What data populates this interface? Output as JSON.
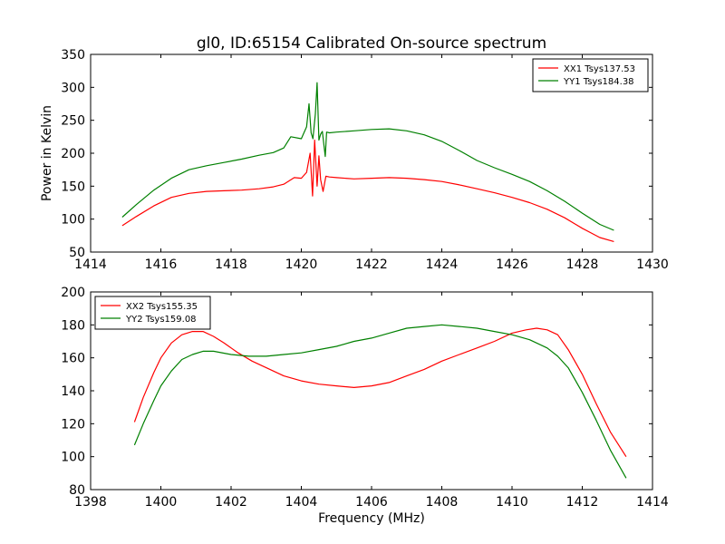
{
  "chart_data": [
    {
      "type": "line",
      "title": "gl0, ID:65154 Calibrated On-source spectrum",
      "xlabel": "",
      "ylabel": "Power in Kelvin",
      "xlim": [
        1414,
        1430
      ],
      "ylim": [
        50,
        350
      ],
      "xticks": [
        "1414",
        "1416",
        "1418",
        "1420",
        "1422",
        "1424",
        "1426",
        "1428",
        "1430"
      ],
      "yticks": [
        "50",
        "100",
        "150",
        "200",
        "250",
        "300",
        "350"
      ],
      "legend_position": "top-right",
      "grid": false,
      "series": [
        {
          "name": "XX1 Tsys137.53",
          "color": "#ff0000",
          "x": [
            1414.9,
            1415.3,
            1415.8,
            1416.3,
            1416.8,
            1417.3,
            1417.8,
            1418.3,
            1418.8,
            1419.2,
            1419.5,
            1419.8,
            1420.0,
            1420.15,
            1420.25,
            1420.32,
            1420.38,
            1420.45,
            1420.5,
            1420.55,
            1420.62,
            1420.7,
            1420.8,
            1421.0,
            1421.5,
            1422.0,
            1422.5,
            1423.0,
            1423.5,
            1424.0,
            1424.5,
            1425.0,
            1425.5,
            1426.0,
            1426.5,
            1427.0,
            1427.5,
            1428.0,
            1428.5,
            1428.9
          ],
          "y": [
            90,
            104,
            120,
            133,
            139,
            142,
            143,
            144,
            146,
            149,
            153,
            163,
            162,
            171,
            200,
            135,
            220,
            150,
            196,
            160,
            142,
            165,
            164,
            163,
            161,
            162,
            163,
            162,
            160,
            157,
            152,
            146,
            140,
            133,
            125,
            115,
            102,
            86,
            72,
            66
          ]
        },
        {
          "name": "YY1 Tsys184.38",
          "color": "#008000",
          "x": [
            1414.9,
            1415.3,
            1415.8,
            1416.3,
            1416.8,
            1417.3,
            1417.8,
            1418.3,
            1418.8,
            1419.2,
            1419.5,
            1419.7,
            1420.0,
            1420.15,
            1420.22,
            1420.28,
            1420.33,
            1420.4,
            1420.45,
            1420.5,
            1420.55,
            1420.6,
            1420.68,
            1420.72,
            1420.8,
            1421.0,
            1421.5,
            1422.0,
            1422.5,
            1423.0,
            1423.5,
            1424.0,
            1424.5,
            1425.0,
            1425.5,
            1426.0,
            1426.5,
            1427.0,
            1427.5,
            1428.0,
            1428.5,
            1428.9
          ],
          "y": [
            103,
            122,
            144,
            162,
            175,
            181,
            186,
            191,
            197,
            201,
            208,
            225,
            222,
            240,
            275,
            231,
            222,
            260,
            307,
            220,
            229,
            233,
            195,
            232,
            231,
            232,
            234,
            236,
            237,
            234,
            228,
            218,
            204,
            189,
            178,
            168,
            157,
            143,
            127,
            109,
            92,
            83
          ]
        }
      ]
    },
    {
      "type": "line",
      "title": "",
      "xlabel": "Frequency (MHz)",
      "ylabel": "",
      "xlim": [
        1398,
        1414
      ],
      "ylim": [
        80,
        200
      ],
      "xticks": [
        "1398",
        "1400",
        "1402",
        "1404",
        "1406",
        "1408",
        "1410",
        "1412",
        "1414"
      ],
      "yticks": [
        "80",
        "100",
        "120",
        "140",
        "160",
        "180",
        "200"
      ],
      "legend_position": "top-left",
      "grid": false,
      "series": [
        {
          "name": "XX2 Tsys155.35",
          "color": "#ff0000",
          "x": [
            1399.25,
            1399.5,
            1399.8,
            1400.0,
            1400.3,
            1400.6,
            1400.9,
            1401.2,
            1401.5,
            1401.8,
            1402.2,
            1402.6,
            1403.0,
            1403.5,
            1404.0,
            1404.5,
            1405.0,
            1405.5,
            1406.0,
            1406.5,
            1407.0,
            1407.5,
            1408.0,
            1408.5,
            1409.0,
            1409.5,
            1410.0,
            1410.4,
            1410.7,
            1411.0,
            1411.3,
            1411.6,
            1412.0,
            1412.4,
            1412.8,
            1413.25
          ],
          "y": [
            121,
            136,
            151,
            160,
            169,
            174,
            176,
            176,
            173,
            169,
            163,
            158,
            154,
            149,
            146,
            144,
            143,
            142,
            143,
            145,
            149,
            153,
            158,
            162,
            166,
            170,
            175,
            177,
            178,
            177,
            174,
            165,
            150,
            132,
            115,
            100
          ]
        },
        {
          "name": "YY2 Tsys159.08",
          "color": "#008000",
          "x": [
            1399.25,
            1399.5,
            1399.8,
            1400.0,
            1400.3,
            1400.6,
            1400.9,
            1401.2,
            1401.5,
            1402.0,
            1402.5,
            1403.0,
            1403.5,
            1404.0,
            1404.5,
            1405.0,
            1405.5,
            1406.0,
            1406.5,
            1407.0,
            1407.5,
            1408.0,
            1408.5,
            1409.0,
            1409.5,
            1410.0,
            1410.5,
            1411.0,
            1411.3,
            1411.6,
            1412.0,
            1412.4,
            1412.8,
            1413.25
          ],
          "y": [
            107,
            120,
            134,
            143,
            152,
            159,
            162,
            164,
            164,
            162,
            161,
            161,
            162,
            163,
            165,
            167,
            170,
            172,
            175,
            178,
            179,
            180,
            179,
            178,
            176,
            174,
            171,
            166,
            161,
            154,
            139,
            122,
            104,
            87
          ]
        }
      ]
    }
  ]
}
